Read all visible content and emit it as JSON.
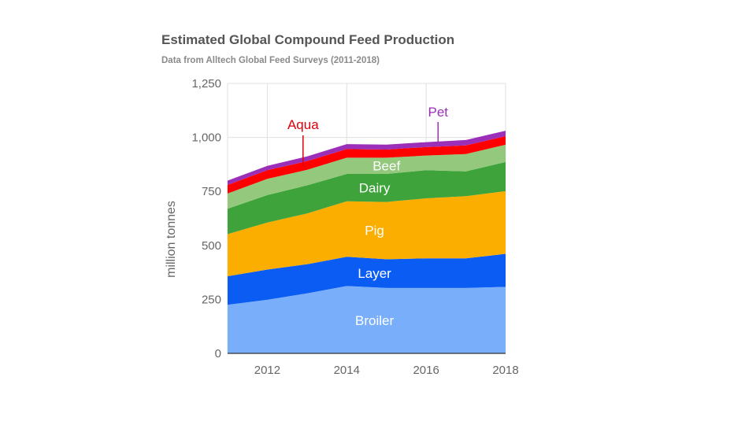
{
  "chart_data": {
    "type": "area",
    "stacked": true,
    "title": "Estimated Global Compound Feed Production",
    "subtitle": "Data from Alltech Global Feed Surveys (2011-2018)",
    "ylabel": "million tonnes",
    "xlabel": "",
    "x": [
      2011,
      2012,
      2013,
      2014,
      2015,
      2016,
      2017,
      2018
    ],
    "xlim": [
      2011,
      2018
    ],
    "ylim": [
      0,
      1250
    ],
    "xticks": [
      2012,
      2014,
      2016,
      2018
    ],
    "yticks": [
      0,
      250,
      500,
      750,
      1000,
      1250
    ],
    "ytick_labels": [
      "0",
      "250",
      "500",
      "750",
      "1,000",
      "1,250"
    ],
    "grid": true,
    "legend": "inline",
    "series": [
      {
        "name": "Broiler",
        "color": "#79aefb",
        "label_color": "#ffffff",
        "values": [
          225,
          248,
          278,
          312,
          303,
          303,
          303,
          308
        ]
      },
      {
        "name": "Layer",
        "color": "#0b5cf3",
        "label_color": "#ffffff",
        "values": [
          132,
          140,
          135,
          135,
          133,
          137,
          137,
          153
        ]
      },
      {
        "name": "Pig",
        "color": "#fbae00",
        "label_color": "#ffffff",
        "values": [
          195,
          218,
          235,
          257,
          265,
          278,
          288,
          290
        ]
      },
      {
        "name": "Dairy",
        "color": "#3ea33a",
        "label_color": "#ffffff",
        "values": [
          118,
          127,
          130,
          127,
          130,
          130,
          115,
          135
        ]
      },
      {
        "name": "Beef",
        "color": "#94c87c",
        "label_color": "#ffffff",
        "values": [
          70,
          75,
          72,
          75,
          75,
          68,
          80,
          80
        ]
      },
      {
        "name": "Aqua",
        "color": "#fe0000",
        "label_color": "#e0000b",
        "values": [
          40,
          40,
          40,
          40,
          38,
          39,
          40,
          40
        ]
      },
      {
        "name": "Pet",
        "color": "#9b2fb8",
        "label_color": "#9b2fb8",
        "values": [
          20,
          20,
          22,
          23,
          23,
          23,
          25,
          25
        ]
      }
    ]
  }
}
